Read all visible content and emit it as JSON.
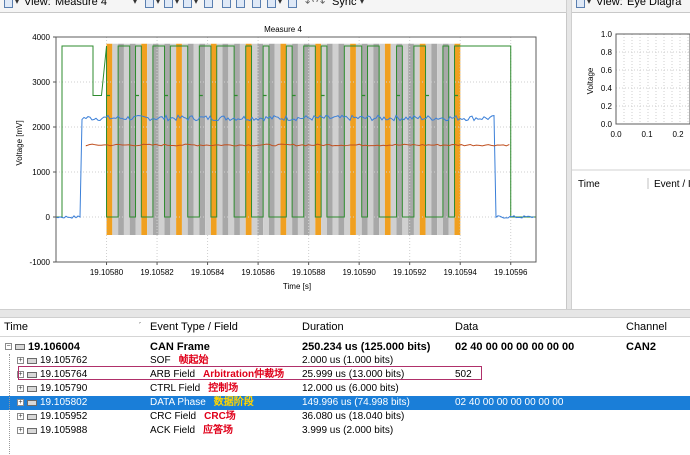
{
  "toolbar_left": {
    "view_label": "View:",
    "view_value": "Measure 4",
    "sync_label": "Sync"
  },
  "toolbar_right": {
    "view_label": "View:",
    "view_value": "Eye Diagra"
  },
  "plot_main": {
    "title": "Measure 4",
    "ylabel": "Voltage [mV]",
    "xlabel": "Time [s]",
    "yticks": [
      "4000",
      "3000",
      "2000",
      "1000",
      "0",
      "-1000"
    ],
    "xticks": [
      "19.10580",
      "19.10582",
      "19.10584",
      "19.10586",
      "19.10588",
      "19.10590",
      "19.10592",
      "19.10594",
      "19.10596"
    ]
  },
  "plot_eye": {
    "ylabel": "Voltage",
    "yticks": [
      "1.0",
      "0.8",
      "0.6",
      "0.4",
      "0.2",
      "0.0"
    ],
    "xticks": [
      "0.0",
      "0.1",
      "0.2"
    ],
    "col_time": "Time",
    "col_event": "Event / I"
  },
  "chart_data": {
    "type": "line",
    "title": "Measure 4",
    "xlabel": "Time [s]",
    "ylabel": "Voltage [mV]",
    "ylim": [
      -1000,
      4000
    ],
    "xlim": [
      19.10578,
      19.10597
    ],
    "series": [
      {
        "color": "#2e8b2e",
        "segments": [
          [
            19.10578,
            19.10579,
            0
          ],
          [
            19.105792,
            19.105797,
            3800
          ],
          [
            19.105797,
            19.105799,
            2700
          ],
          [
            19.1058,
            19.10597,
            3800
          ]
        ],
        "note_high": 3800,
        "note_mid": 2700
      },
      {
        "color": "#3a7fd8",
        "levels": [
          2200,
          0
        ]
      },
      {
        "color": "#c05020",
        "levels": [
          1600
        ]
      }
    ],
    "bit_stripes_start": 19.1058,
    "bit_stripes_end": 19.10594
  },
  "table": {
    "headers": [
      "Time",
      "Event Type / Field",
      "Duration",
      "Data",
      "Channel"
    ],
    "rows": [
      {
        "time": "19.106004",
        "event": "CAN Frame",
        "cn": "",
        "duration": "250.234 us (125.000 bits)",
        "data": "02 40 00 00 00 00 00 00",
        "channel": "CAN2"
      },
      {
        "time": "19.105762",
        "event": "SOF",
        "cn": "帧起始",
        "duration": "2.000 us (1.000 bits)",
        "data": "",
        "channel": ""
      },
      {
        "time": "19.105764",
        "event": "ARB Field",
        "cn": "Arbitration仲裁场",
        "duration": "25.999 us (13.000 bits)",
        "data": "502",
        "channel": ""
      },
      {
        "time": "19.105790",
        "event": "CTRL Field",
        "cn": "控制场",
        "duration": "12.000 us (6.000 bits)",
        "data": "",
        "channel": ""
      },
      {
        "time": "19.105802",
        "event": "DATA Phase",
        "cn": "数据阶段",
        "duration": "149.996 us (74.998 bits)",
        "data": "02 40 00 00 00 00 00 00",
        "channel": ""
      },
      {
        "time": "19.105952",
        "event": "CRC Field",
        "cn": "CRC场",
        "duration": "36.080 us (18.040 bits)",
        "data": "",
        "channel": ""
      },
      {
        "time": "19.105988",
        "event": "ACK Field",
        "cn": "应答场",
        "duration": "3.999 us (2.000 bits)",
        "data": "",
        "channel": ""
      }
    ]
  }
}
